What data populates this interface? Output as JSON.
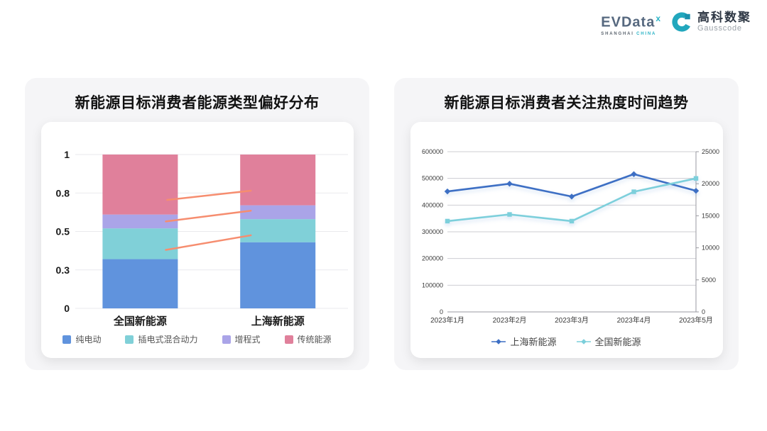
{
  "brand": {
    "evdata": "EVData",
    "evdata_sup": "x",
    "tagline_city": "SHANGHAI",
    "tagline_country": "CHINA",
    "gausscode_cn": "高科数聚",
    "gausscode_en": "Gausscode",
    "accent_teal": "#2ab3c6"
  },
  "chart_data": [
    {
      "type": "bar",
      "stacked": true,
      "title": "新能源目标消费者能源类型偏好分布",
      "categories": [
        "全国新能源",
        "上海新能源"
      ],
      "series": [
        {
          "name": "纯电动",
          "color": "#6093dd",
          "values": [
            0.32,
            0.43
          ]
        },
        {
          "name": "插电式混合动力",
          "color": "#80d0d8",
          "values": [
            0.2,
            0.15
          ]
        },
        {
          "name": "增程式",
          "color": "#aaa4e8",
          "values": [
            0.09,
            0.09
          ]
        },
        {
          "name": "传统能源",
          "color": "#e0809b",
          "values": [
            0.39,
            0.33
          ]
        }
      ],
      "ylim": [
        0,
        1
      ],
      "yticks": [
        {
          "value": 0,
          "label": "0"
        },
        {
          "value": 0.25,
          "label": "0.3"
        },
        {
          "value": 0.5,
          "label": "0.5"
        },
        {
          "value": 0.75,
          "label": "0.8"
        },
        {
          "value": 1,
          "label": "1"
        }
      ],
      "grid": true,
      "legend_position": "bottom",
      "annotations": {
        "color": "#f68d6f",
        "lines": [
          {
            "x1_frac": 0.33,
            "y1": 0.705,
            "x2_frac": 0.64,
            "y2": 0.765
          },
          {
            "x1_frac": 0.325,
            "y1": 0.565,
            "x2_frac": 0.64,
            "y2": 0.635
          },
          {
            "x1_frac": 0.325,
            "y1": 0.38,
            "x2_frac": 0.64,
            "y2": 0.475
          }
        ]
      }
    },
    {
      "type": "line",
      "title": "新能源目标消费者关注热度时间趋势",
      "x": [
        "2023年1月",
        "2023年2月",
        "2023年3月",
        "2023年4月",
        "2023年5月"
      ],
      "series": [
        {
          "name": "上海新能源",
          "color": "#3d6fc4",
          "axis": "right",
          "marker": "diamond",
          "values": [
            18800,
            20000,
            18000,
            21500,
            18900
          ]
        },
        {
          "name": "全国新能源",
          "color": "#7ccfdb",
          "axis": "left",
          "marker": "square",
          "values": [
            340000,
            365000,
            340000,
            450000,
            500000
          ]
        }
      ],
      "left_axis": {
        "lim": [
          0,
          600000
        ],
        "ticks": [
          "0",
          "100000",
          "200000",
          "300000",
          "400000",
          "500000",
          "600000"
        ]
      },
      "right_axis": {
        "lim": [
          0,
          25000
        ],
        "ticks": [
          "0",
          "5000",
          "10000",
          "15000",
          "20000",
          "25000"
        ]
      },
      "grid": true,
      "legend_position": "bottom"
    }
  ]
}
